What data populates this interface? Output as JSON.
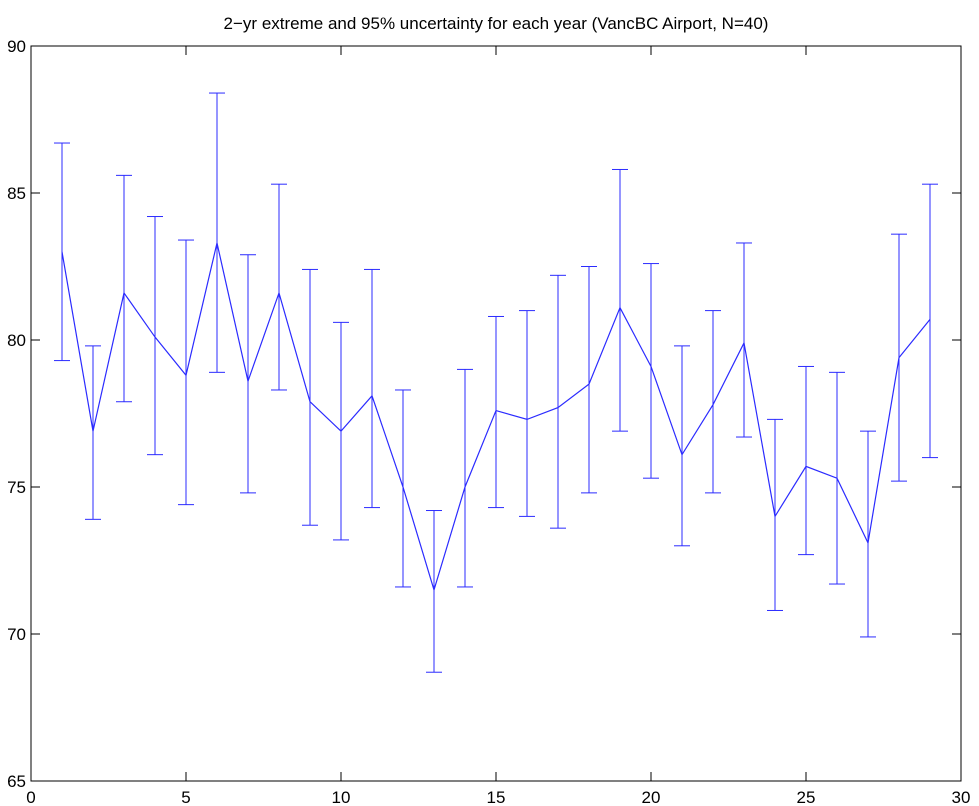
{
  "chart_data": {
    "type": "line",
    "title": "2−yr extreme and 95% uncertainty for each year (VancBC Airport, N=40)",
    "xlabel": "",
    "ylabel": "",
    "xlim": [
      0,
      30
    ],
    "ylim": [
      65,
      90
    ],
    "xticks": [
      0,
      5,
      10,
      15,
      20,
      25,
      30
    ],
    "yticks": [
      65,
      70,
      75,
      80,
      85,
      90
    ],
    "grid": false,
    "legend": "none",
    "line_color": "#2b2bff",
    "series": [
      {
        "x": [
          1,
          2,
          3,
          4,
          5,
          6,
          7,
          8,
          9,
          10,
          11,
          12,
          13,
          14,
          15,
          16,
          17,
          18,
          19,
          20,
          21,
          22,
          23,
          24,
          25,
          26,
          27,
          28,
          29
        ],
        "values": [
          83.0,
          76.9,
          81.6,
          80.1,
          78.8,
          83.3,
          78.6,
          81.6,
          77.9,
          76.9,
          78.1,
          75.0,
          71.5,
          75.0,
          77.6,
          77.3,
          77.7,
          78.5,
          81.1,
          79.1,
          76.1,
          77.8,
          79.9,
          74.0,
          75.7,
          75.3,
          73.1,
          79.4,
          80.7
        ],
        "lower": [
          79.3,
          73.9,
          77.9,
          76.1,
          74.4,
          78.9,
          74.8,
          78.3,
          73.7,
          73.2,
          74.3,
          71.6,
          68.7,
          71.6,
          74.3,
          74.0,
          73.6,
          74.8,
          76.9,
          75.3,
          73.0,
          74.8,
          76.7,
          70.8,
          72.7,
          71.7,
          69.9,
          75.2,
          76.0
        ],
        "upper": [
          86.7,
          79.8,
          85.6,
          84.2,
          83.4,
          88.4,
          82.9,
          85.3,
          82.4,
          80.6,
          82.4,
          78.3,
          74.2,
          79.0,
          80.8,
          81.0,
          82.2,
          82.5,
          85.8,
          82.6,
          79.8,
          81.0,
          83.3,
          77.3,
          79.1,
          78.9,
          76.9,
          83.6,
          85.3
        ]
      }
    ]
  }
}
